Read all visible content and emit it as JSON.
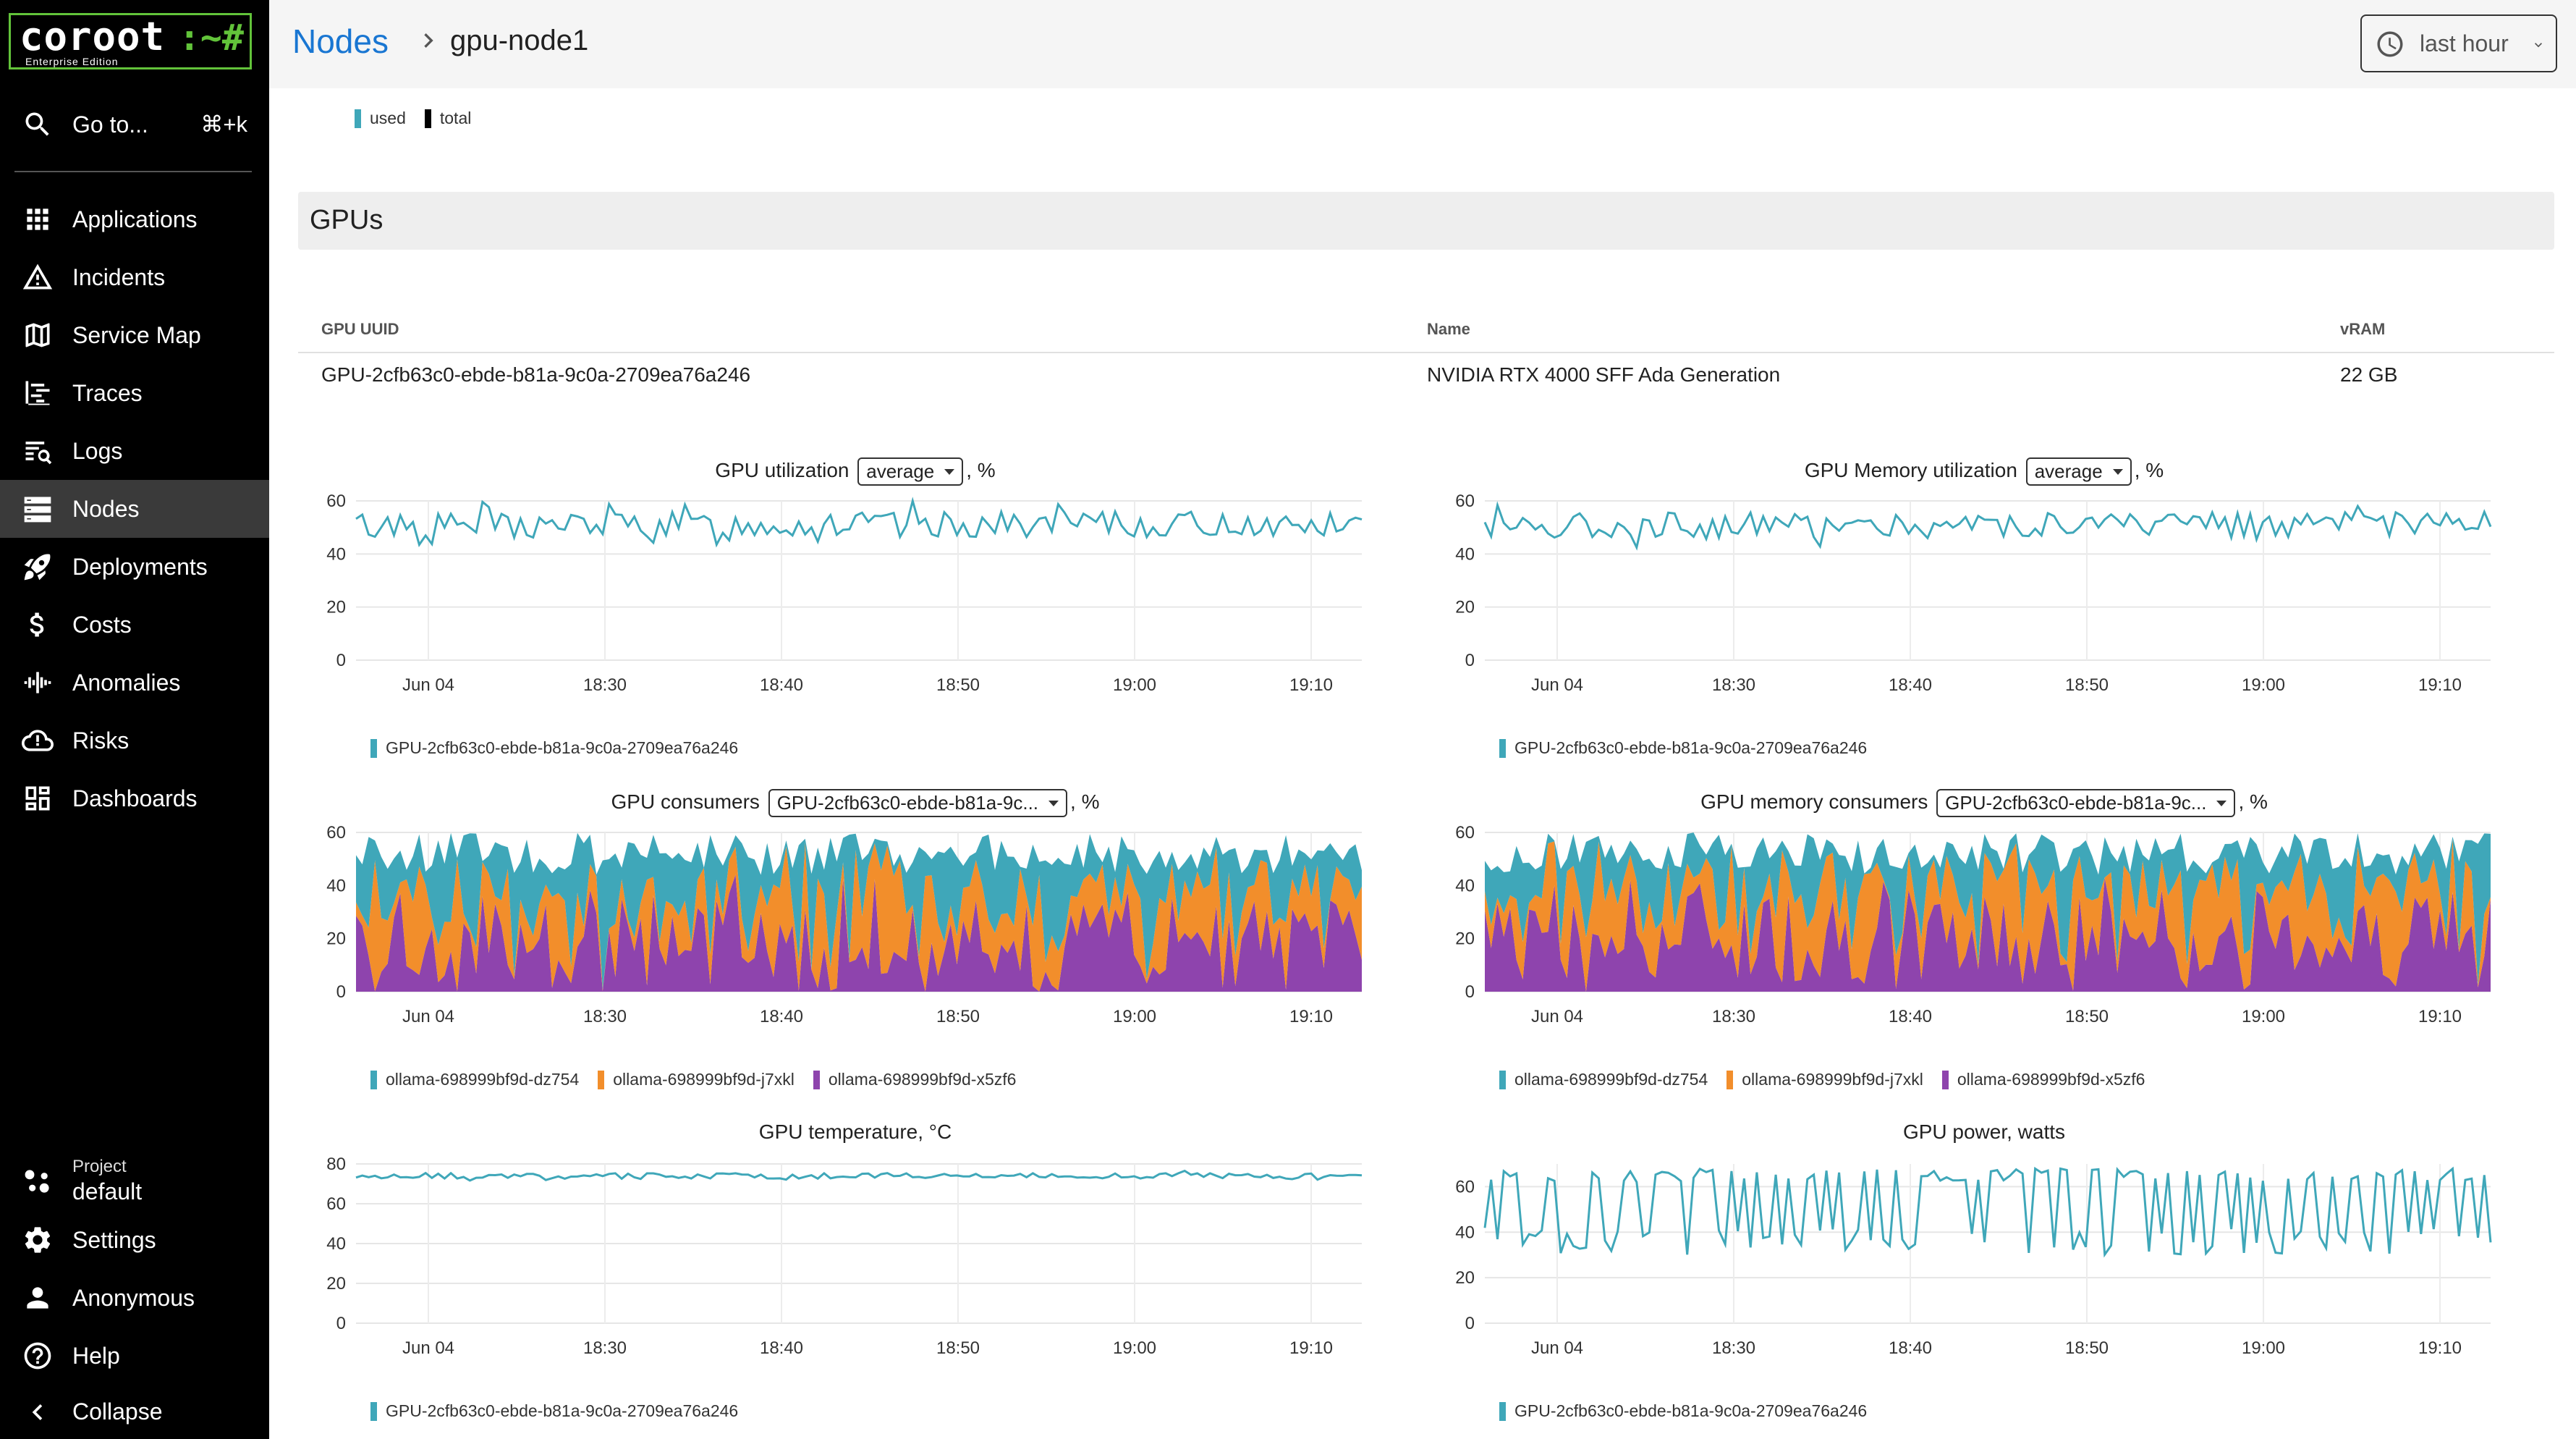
{
  "sidebar": {
    "logo": {
      "word": "coroot",
      "prompt": ":~#",
      "edition": "Enterprise Edition"
    },
    "goto": {
      "label": "Go to...",
      "shortcut": "⌘+k"
    },
    "items": [
      {
        "label": "Applications",
        "icon": "apps-icon"
      },
      {
        "label": "Incidents",
        "icon": "warning-icon"
      },
      {
        "label": "Service Map",
        "icon": "map-icon"
      },
      {
        "label": "Traces",
        "icon": "traces-icon"
      },
      {
        "label": "Logs",
        "icon": "logs-icon"
      },
      {
        "label": "Nodes",
        "icon": "nodes-icon",
        "active": true
      },
      {
        "label": "Deployments",
        "icon": "rocket-icon"
      },
      {
        "label": "Costs",
        "icon": "dollar-icon"
      },
      {
        "label": "Anomalies",
        "icon": "waveform-icon"
      },
      {
        "label": "Risks",
        "icon": "cloud-alert-icon"
      },
      {
        "label": "Dashboards",
        "icon": "dashboard-icon"
      }
    ],
    "project": {
      "caption": "Project",
      "name": "default"
    },
    "bottom": [
      {
        "label": "Settings",
        "icon": "gear-icon"
      },
      {
        "label": "Anonymous",
        "icon": "user-icon"
      },
      {
        "label": "Help",
        "icon": "help-icon"
      },
      {
        "label": "Collapse",
        "icon": "chevron-left-icon"
      }
    ]
  },
  "header": {
    "crumb_parent": "Nodes",
    "crumb_current": "gpu-node1",
    "time_range": "last hour"
  },
  "top_legend": [
    "used",
    "total"
  ],
  "colors": {
    "teal": "#3fa7b9",
    "orange": "#f28e2b",
    "purple": "#8e44ad",
    "black": "#000000"
  },
  "gpus_section": {
    "title": "GPUs",
    "table": {
      "headers": {
        "uuid": "GPU UUID",
        "name": "Name",
        "vram": "vRAM"
      },
      "row": {
        "uuid": "GPU-2cfb63c0-ebde-b81a-9c0a-2709ea76a246",
        "name": "NVIDIA RTX 4000 SFF Ada Generation",
        "vram": "22 GB"
      }
    }
  },
  "charts": {
    "util": {
      "title": "GPU utilization",
      "select": "average",
      "suffix": ", %"
    },
    "memutil": {
      "title": "GPU Memory utilization",
      "select": "average",
      "suffix": ", %"
    },
    "cons": {
      "title": "GPU consumers",
      "select": "GPU-2cfb63c0-ebde-b81a-9c...",
      "suffix": ", %"
    },
    "memcons": {
      "title": "GPU memory consumers",
      "select": "GPU-2cfb63c0-ebde-b81a-9c...",
      "suffix": ", %"
    },
    "temp": {
      "title": "GPU temperature, °C"
    },
    "power": {
      "title": "GPU power, watts"
    }
  },
  "chart_data": [
    {
      "id": "util",
      "type": "line",
      "title": "GPU utilization, %",
      "x_ticks": [
        "Jun 04",
        "18:30",
        "18:40",
        "18:50",
        "19:00",
        "19:10"
      ],
      "ylim": [
        0,
        60
      ],
      "y_ticks": [
        0,
        20,
        40,
        60
      ],
      "series": [
        {
          "name": "GPU-2cfb63c0-ebde-b81a-9c0a-2709ea76a246",
          "color": "#3fa7b9",
          "base": 51,
          "amp": 7
        }
      ]
    },
    {
      "id": "memutil",
      "type": "line",
      "title": "GPU Memory utilization, %",
      "x_ticks": [
        "Jun 04",
        "18:30",
        "18:40",
        "18:50",
        "19:00",
        "19:10"
      ],
      "ylim": [
        0,
        60
      ],
      "y_ticks": [
        0,
        20,
        40,
        60
      ],
      "series": [
        {
          "name": "GPU-2cfb63c0-ebde-b81a-9c0a-2709ea76a246",
          "color": "#3fa7b9",
          "base": 51,
          "amp": 7
        }
      ]
    },
    {
      "id": "cons",
      "type": "area",
      "stacked": true,
      "title": "GPU consumers, %",
      "x_ticks": [
        "Jun 04",
        "18:30",
        "18:40",
        "18:50",
        "19:00",
        "19:10"
      ],
      "ylim": [
        0,
        60
      ],
      "y_ticks": [
        0,
        20,
        40,
        60
      ],
      "series": [
        {
          "name": "ollama-698999bf9d-dz754",
          "color": "#3fa7b9"
        },
        {
          "name": "ollama-698999bf9d-j7xkl",
          "color": "#f28e2b"
        },
        {
          "name": "ollama-698999bf9d-x5zf6",
          "color": "#8e44ad"
        }
      ],
      "total_approx": 52
    },
    {
      "id": "memcons",
      "type": "area",
      "stacked": true,
      "title": "GPU memory consumers, %",
      "x_ticks": [
        "Jun 04",
        "18:30",
        "18:40",
        "18:50",
        "19:00",
        "19:10"
      ],
      "ylim": [
        0,
        60
      ],
      "y_ticks": [
        0,
        20,
        40,
        60
      ],
      "series": [
        {
          "name": "ollama-698999bf9d-dz754",
          "color": "#3fa7b9"
        },
        {
          "name": "ollama-698999bf9d-j7xkl",
          "color": "#f28e2b"
        },
        {
          "name": "ollama-698999bf9d-x5zf6",
          "color": "#8e44ad"
        }
      ],
      "total_approx": 52
    },
    {
      "id": "temp",
      "type": "line",
      "title": "GPU temperature, °C",
      "x_ticks": [
        "Jun 04",
        "18:30",
        "18:40",
        "18:50",
        "19:00",
        "19:10"
      ],
      "ylim": [
        0,
        80
      ],
      "y_ticks": [
        0,
        20,
        40,
        60,
        80
      ],
      "series": [
        {
          "name": "GPU-2cfb63c0-ebde-b81a-9c0a-2709ea76a246",
          "color": "#3fa7b9",
          "base": 74,
          "amp": 2
        }
      ]
    },
    {
      "id": "power",
      "type": "line",
      "title": "GPU power, watts",
      "x_ticks": [
        "Jun 04",
        "18:30",
        "18:40",
        "18:50",
        "19:00",
        "19:10"
      ],
      "ylim": [
        0,
        70
      ],
      "y_ticks": [
        0,
        20,
        40,
        60
      ],
      "series": [
        {
          "name": "GPU-2cfb63c0-ebde-b81a-9c0a-2709ea76a246",
          "color": "#3fa7b9",
          "low": 30,
          "high": 68
        }
      ]
    }
  ]
}
